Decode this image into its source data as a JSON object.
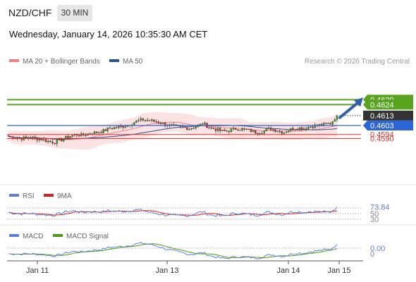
{
  "header": {
    "symbol": "NZD/CHF",
    "timeframe": "30 MIN",
    "datetime": "Wednesday, January 14, 2026 10:35:30 AM CET",
    "credit": "Research © 2026 Trading Central"
  },
  "chart_data": [
    {
      "type": "candlestick",
      "legend": [
        {
          "name": "MA 20 + Bollinger Bands",
          "color": "#f08080"
        },
        {
          "name": "MA 50",
          "color": "#2b4f8a"
        }
      ],
      "x_ticks": [
        "Jan 11",
        "Jan 13",
        "Jan 14",
        "Jan 15"
      ],
      "levels": [
        {
          "label": "0.4629",
          "value": 0.4629,
          "color": "#5aa320",
          "type": "resistance"
        },
        {
          "label": "0.4624",
          "value": 0.4624,
          "color": "#5aa320",
          "type": "resistance"
        },
        {
          "label": "0.4613",
          "value": 0.4613,
          "color": "#333333",
          "type": "last"
        },
        {
          "label": "0.4603",
          "value": 0.4603,
          "color": "#2c65d6",
          "type": "pivot"
        },
        {
          "label": "0.4594",
          "value": 0.4594,
          "color": "#d9312b",
          "type": "support"
        },
        {
          "label": "0.4590",
          "value": 0.459,
          "color": "#d9312b",
          "type": "support"
        }
      ],
      "close_path": [
        0.4592,
        0.4591,
        0.459,
        0.4591,
        0.459,
        0.4589,
        0.4587,
        0.4586,
        0.4589,
        0.4592,
        0.4594,
        0.4593,
        0.4595,
        0.4596,
        0.4597,
        0.46,
        0.4601,
        0.4602,
        0.4604,
        0.4607,
        0.4609,
        0.4608,
        0.4607,
        0.4605,
        0.4603,
        0.4602,
        0.4601,
        0.46,
        0.4602,
        0.4605,
        0.4601,
        0.4599,
        0.4597,
        0.4598,
        0.46,
        0.4599,
        0.4598,
        0.4596,
        0.4597,
        0.46,
        0.4598,
        0.4596,
        0.4599,
        0.4601,
        0.46,
        0.4602,
        0.4603,
        0.4604,
        0.4605,
        0.4613
      ],
      "arrow": {
        "from_value": 0.4611,
        "to_value": 0.4629
      }
    },
    {
      "type": "line",
      "legend": [
        {
          "name": "RSI",
          "color": "#5b7fd6"
        },
        {
          "name": "9MA",
          "color": "#d21f1f"
        }
      ],
      "y_ticks": [
        "50",
        "30"
      ],
      "last_value": "73.84",
      "ylim": [
        20,
        80
      ]
    },
    {
      "type": "line",
      "legend": [
        {
          "name": "MACD",
          "color": "#5b7fd6"
        },
        {
          "name": "MACD Signal",
          "color": "#4a9a10"
        }
      ],
      "y_ticks": [
        "0"
      ],
      "last_value": "0.00"
    }
  ]
}
